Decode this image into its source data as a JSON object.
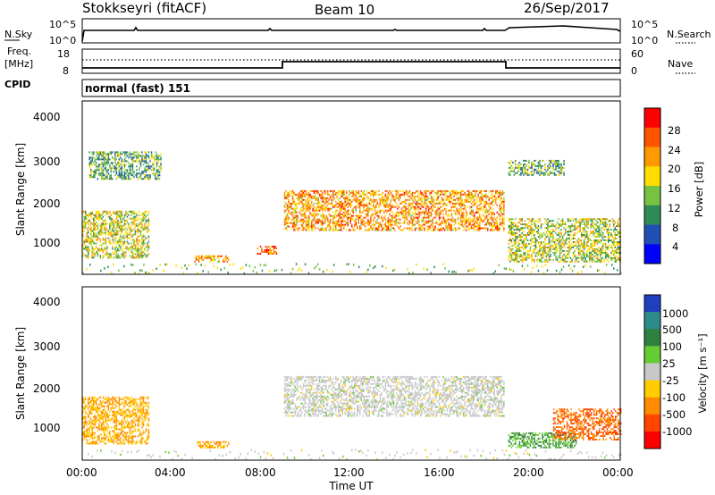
{
  "header": {
    "station": "Stokkseyri (fitACF)",
    "beam": "Beam 10",
    "date": "26/Sep/2017"
  },
  "nsky_panel": {
    "left_label": "N.Sky",
    "left_ticks": [
      "10^5",
      "10^0"
    ],
    "right_ticks": [
      "10^5",
      "10^0"
    ],
    "right_label": "N.Search"
  },
  "freq_panel": {
    "left_label_1": "Freq.",
    "left_label_2": "[MHz]",
    "left_ticks": [
      "18",
      "8"
    ],
    "right_ticks": [
      "60",
      "0"
    ],
    "right_label": "Nave",
    "cpid_label": "CPID"
  },
  "cpid_panel": {
    "text": "normal (fast) 151"
  },
  "power_panel": {
    "ylabel": "Slant Range [km]",
    "yticks": [
      "4000",
      "3000",
      "2000",
      "1000"
    ],
    "cbar_label": "Power [dB]",
    "cbar_ticks": [
      "28",
      "24",
      "20",
      "16",
      "12",
      "8",
      "4"
    ],
    "cbar_colors": [
      "#ff0000",
      "#ff5500",
      "#ff9900",
      "#ffdd00",
      "#77c241",
      "#2e8b57",
      "#1f4fb2",
      "#0000ff"
    ]
  },
  "velocity_panel": {
    "ylabel": "Slant Range [km]",
    "yticks": [
      "4000",
      "3000",
      "2000",
      "1000"
    ],
    "cbar_label": "Velocity [m s⁻¹]",
    "cbar_ticks": [
      "1000",
      "500",
      "100",
      "25",
      "-25",
      "-100",
      "-500",
      "-1000"
    ],
    "cbar_colors": [
      "#1f3fbf",
      "#2e8b8b",
      "#2f7f3f",
      "#66cc33",
      "#c8c8c8",
      "#ffcc00",
      "#ff8c00",
      "#ff4500",
      "#ff0000"
    ]
  },
  "x_axis": {
    "ticks": [
      "00:00",
      "04:00",
      "08:00",
      "12:00",
      "16:00",
      "20:00",
      "00:00"
    ],
    "label": "Time UT"
  },
  "chart_data": {
    "type": "heatmap",
    "title": "Stokkseyri (fitACF) Beam 10 26/Sep/2017",
    "xlabel": "Time UT",
    "ylabel": "Slant Range [km]",
    "xlim_hours": [
      0,
      24
    ],
    "ylim_km": [
      200,
      4600
    ],
    "frequency_mhz": [
      {
        "from_hour": 0,
        "to_hour": 9,
        "value": 9
      },
      {
        "from_hour": 9,
        "to_hour": 19,
        "value": 12
      },
      {
        "from_hour": 19,
        "to_hour": 24,
        "value": 9
      }
    ],
    "power_echo_regions": [
      {
        "from_hour": 0.0,
        "to_hour": 3.0,
        "range_km": [
          600,
          1800
        ],
        "power_db": 14
      },
      {
        "from_hour": 0.3,
        "to_hour": 3.5,
        "range_km": [
          2600,
          3300
        ],
        "power_db": 10
      },
      {
        "from_hour": 5.0,
        "to_hour": 6.5,
        "range_km": [
          500,
          650
        ],
        "power_db": 18
      },
      {
        "from_hour": 7.8,
        "to_hour": 8.7,
        "range_km": [
          700,
          900
        ],
        "power_db": 24
      },
      {
        "from_hour": 9.0,
        "to_hour": 18.8,
        "range_km": [
          1300,
          2300
        ],
        "power_db": 20
      },
      {
        "from_hour": 19.0,
        "to_hour": 24.0,
        "range_km": [
          500,
          1600
        ],
        "power_db": 14
      },
      {
        "from_hour": 19.0,
        "to_hour": 21.5,
        "range_km": [
          2700,
          3100
        ],
        "power_db": 10
      }
    ],
    "velocity_echo_regions": [
      {
        "from_hour": 0.0,
        "to_hour": 3.0,
        "range_km": [
          600,
          1800
        ],
        "velocity_ms": -100
      },
      {
        "from_hour": 5.0,
        "to_hour": 6.5,
        "range_km": [
          500,
          650
        ],
        "velocity_ms": -100
      },
      {
        "from_hour": 9.0,
        "to_hour": 18.8,
        "range_km": [
          1300,
          2300
        ],
        "velocity_ms": 0
      },
      {
        "from_hour": 19.0,
        "to_hour": 22.0,
        "range_km": [
          500,
          900
        ],
        "velocity_ms": 100
      },
      {
        "from_hour": 21.0,
        "to_hour": 24.0,
        "range_km": [
          700,
          1500
        ],
        "velocity_ms": -500
      }
    ]
  }
}
